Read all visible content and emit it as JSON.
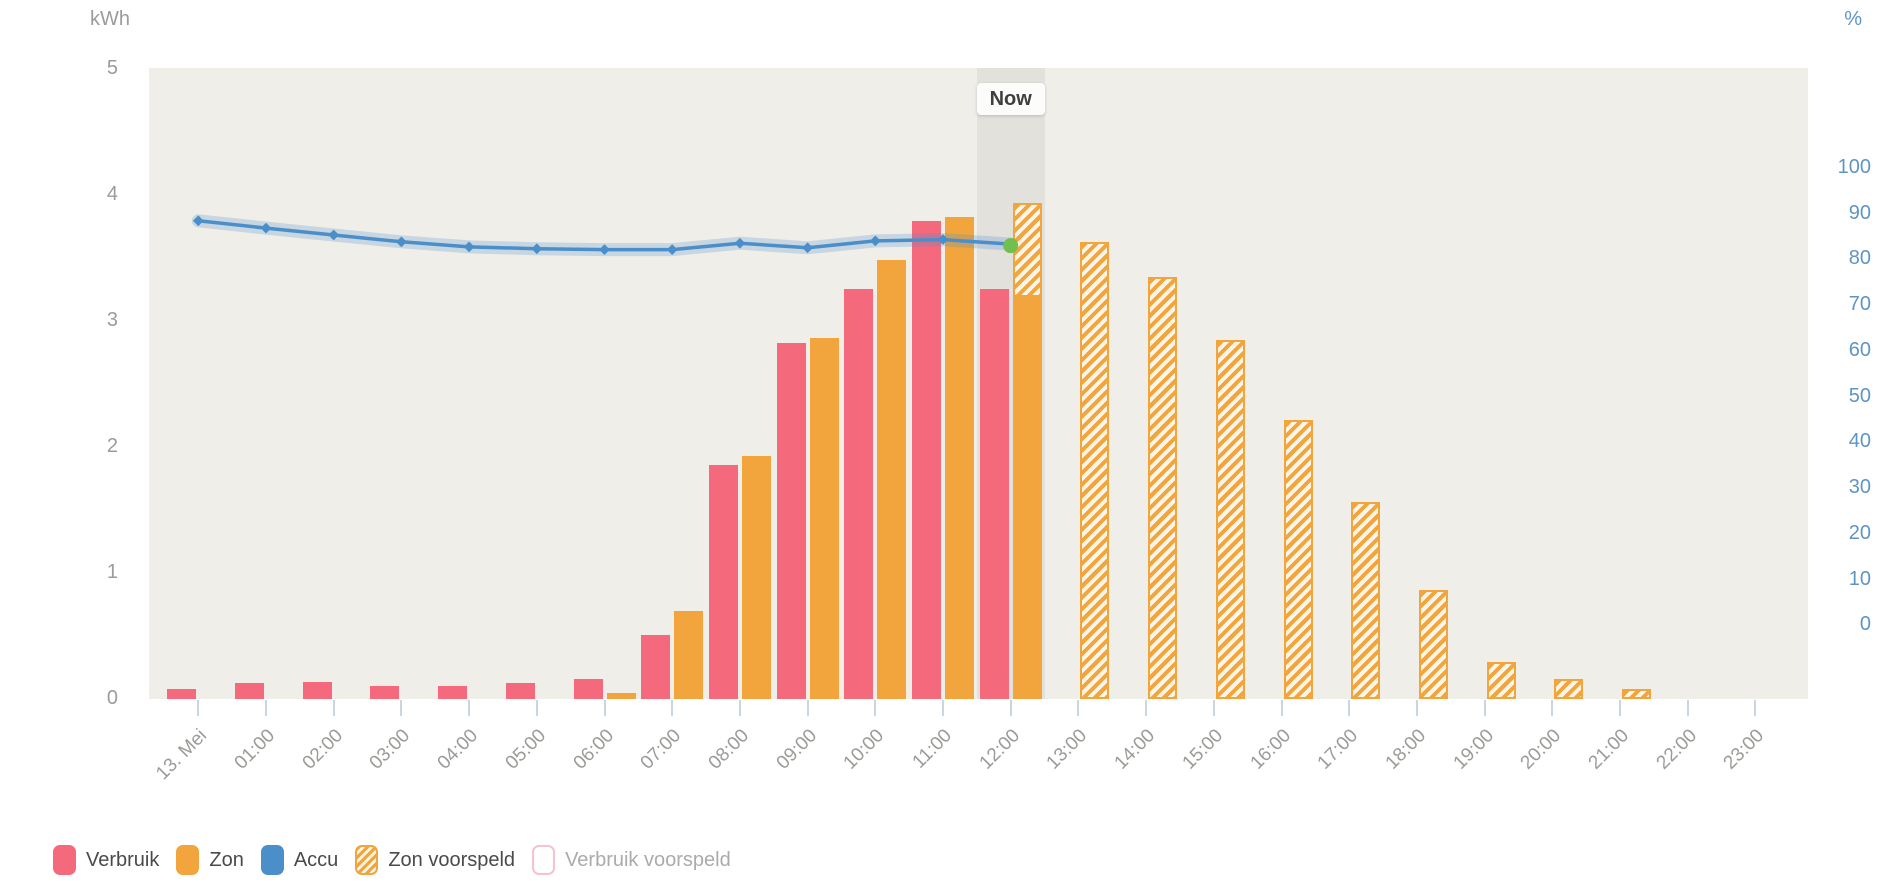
{
  "chart": {
    "y_axis_left": {
      "title": "kWh",
      "ticks": [
        5,
        4,
        3,
        2,
        1,
        0
      ]
    },
    "y_axis_right": {
      "title": "%",
      "ticks": [
        100,
        90,
        80,
        70,
        60,
        50,
        40,
        30,
        20,
        10,
        0
      ]
    },
    "now_label": "Now",
    "legend": {
      "items": [
        {
          "label": "Verbruik",
          "swatch": "solid-pink",
          "disabled": false
        },
        {
          "label": "Zon",
          "swatch": "solid-orange",
          "disabled": false
        },
        {
          "label": "Accu",
          "swatch": "solid-blue",
          "disabled": false
        },
        {
          "label": "Zon voorspeld",
          "swatch": "hatched-orange",
          "disabled": false
        },
        {
          "label": "Verbruik voorspeld",
          "swatch": "outline-pink",
          "disabled": true
        }
      ]
    },
    "colors": {
      "verbruik": "#f4697b",
      "zon": "#f1a53c",
      "accu": "#4a8fca",
      "accu_band": "rgba(74,143,202,0.25)",
      "current_marker_green": "#70bf4f",
      "plot_background": "#f0eee9",
      "now_band": "#e3e1dc",
      "axis_text": "#9b9b98",
      "right_axis_text": "#5e95c5",
      "tick": "#c9d5df"
    }
  },
  "chart_data": {
    "type": "bar",
    "title": "",
    "categories": [
      "13. Mei",
      "01:00",
      "02:00",
      "03:00",
      "04:00",
      "05:00",
      "06:00",
      "07:00",
      "08:00",
      "09:00",
      "10:00",
      "11:00",
      "12:00",
      "13:00",
      "14:00",
      "15:00",
      "16:00",
      "17:00",
      "18:00",
      "19:00",
      "20:00",
      "21:00",
      "22:00",
      "23:00"
    ],
    "ylabel_left": "kWh",
    "ylabel_right": "%",
    "ylim_left": [
      0,
      5
    ],
    "ylim_right_ticks": [
      0,
      100
    ],
    "grid": false,
    "legend_position": "bottom-left",
    "now_marker": {
      "category": "12:00",
      "label": "Now"
    },
    "series": [
      {
        "name": "Verbruik",
        "type": "column",
        "unit": "kWh",
        "color": "#f4697b",
        "values": [
          0.07,
          0.12,
          0.13,
          0.1,
          0.1,
          0.12,
          0.15,
          0.5,
          1.85,
          2.82,
          3.25,
          3.79,
          3.25,
          null,
          null,
          null,
          null,
          null,
          null,
          null,
          null,
          null,
          null,
          null
        ]
      },
      {
        "name": "Zon",
        "type": "column",
        "unit": "kWh",
        "color": "#f1a53c",
        "values": [
          0,
          0,
          0,
          0,
          0,
          0,
          0.04,
          0.69,
          1.92,
          2.86,
          3.48,
          3.82,
          3.18,
          null,
          null,
          null,
          null,
          null,
          null,
          null,
          null,
          null,
          null,
          null
        ]
      },
      {
        "name": "Accu",
        "type": "line",
        "axis": "right",
        "unit": "%",
        "color": "#4a8fca",
        "values": [
          88.2,
          86.6,
          85.1,
          83.6,
          82.5,
          82.1,
          81.9,
          81.9,
          83.3,
          82.3,
          83.8,
          84.1,
          83.1,
          null,
          null,
          null,
          null,
          null,
          null,
          null,
          null,
          null,
          null,
          null
        ]
      },
      {
        "name": "Zon voorspeld",
        "type": "column",
        "style": "hatched",
        "unit": "kWh",
        "color": "#f1a53c",
        "values": [
          null,
          null,
          null,
          null,
          null,
          null,
          null,
          null,
          null,
          null,
          null,
          null,
          3.93,
          3.62,
          3.34,
          2.84,
          2.21,
          1.56,
          0.86,
          0.29,
          0.15,
          0.07,
          0,
          0
        ],
        "base": [
          null,
          null,
          null,
          null,
          null,
          null,
          null,
          null,
          null,
          null,
          null,
          null,
          3.18,
          0,
          0,
          0,
          0,
          0,
          0,
          0,
          0,
          0,
          0,
          0
        ]
      },
      {
        "name": "Verbruik voorspeld",
        "type": "column",
        "style": "outline",
        "unit": "kWh",
        "color": "#f4697b",
        "hidden": true,
        "values": []
      }
    ]
  }
}
